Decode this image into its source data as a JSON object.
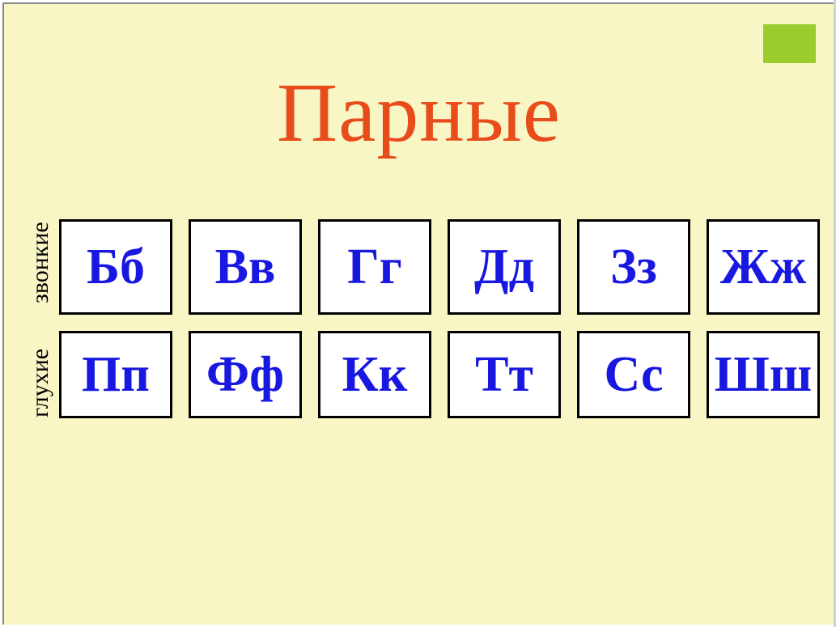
{
  "slide": {
    "title": "Парные",
    "title_color": "#e84c1a",
    "title_fontsize": 104,
    "background_color": "#f9f6c6",
    "accent_color": "#9acc2e",
    "cell_text_color": "#1818e0",
    "cell_fontsize": 62,
    "rows": [
      {
        "label": "звонкие",
        "cells": [
          "Бб",
          "Вв",
          "Гг",
          "Дд",
          "Зз",
          "Жж"
        ]
      },
      {
        "label": "глухие",
        "cells": [
          "Пп",
          "Фф",
          "Кк",
          "Тт",
          "Сс",
          "Шш"
        ]
      }
    ]
  }
}
